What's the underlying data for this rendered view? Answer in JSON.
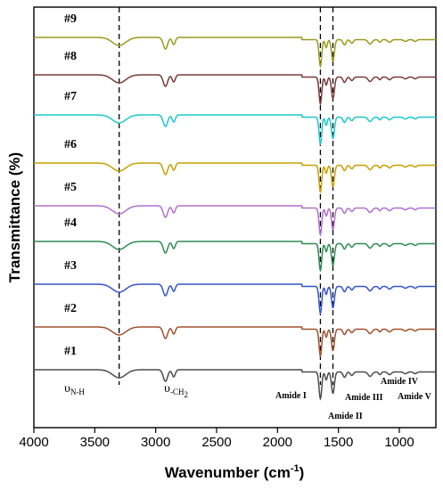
{
  "chart_data": {
    "type": "line",
    "xlabel_main": "Wavenumber (cm",
    "xlabel_sup": "-1",
    "xlabel_end": ")",
    "ylabel": "Transmittance (%)",
    "xlim": [
      4000,
      700
    ],
    "xticks": [
      4000,
      3500,
      3000,
      2500,
      2000,
      1500,
      1000
    ],
    "tick_labels": [
      "4000",
      "3500",
      "3000",
      "2500",
      "2000",
      "1500",
      "1000"
    ],
    "reference_lines": [
      3300,
      1648,
      1545
    ],
    "series": [
      {
        "name": "#1",
        "color": "#4d4d4d"
      },
      {
        "name": "#2",
        "color": "#a0522d"
      },
      {
        "name": "#3",
        "color": "#3355cc"
      },
      {
        "name": "#4",
        "color": "#2e8b57"
      },
      {
        "name": "#5",
        "color": "#b070d0"
      },
      {
        "name": "#6",
        "color": "#c8a000"
      },
      {
        "name": "#7",
        "color": "#1cc8cc"
      },
      {
        "name": "#8",
        "color": "#7a3b3b"
      },
      {
        "name": "#9",
        "color": "#9a9a1e"
      }
    ],
    "annotations": {
      "nh_symbol": "υ",
      "nh_sub": "N-H",
      "ch2_symbol": "υ",
      "ch2_sub": "-CH",
      "ch2_sub2": "2",
      "amide_1": "Amide I",
      "amide_2": "Amide II",
      "amide_3": "Amide III",
      "amide_4": "Amide IV",
      "amide_5": "Amide V"
    }
  }
}
